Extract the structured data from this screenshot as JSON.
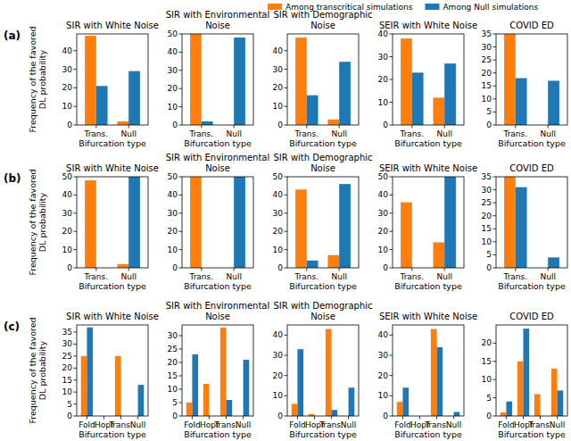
{
  "chart_data": [
    {
      "type": "bar",
      "title": "SIR with White Noise",
      "xlabel": "Bifurcation type",
      "ylabel": "Frequency of the favored DL probability",
      "annotations": [
        "(a)"
      ],
      "legend": "top",
      "categories": [
        "Trans.",
        "Null"
      ],
      "series": [
        {
          "name": "Among transcritical simulations",
          "color": "#ff7f0e",
          "values": [
            48,
            2
          ]
        },
        {
          "name": "Among Null simulations",
          "color": "#1f77b4",
          "values": [
            21,
            29
          ]
        }
      ],
      "ylim": [
        0,
        49
      ],
      "yticks": [
        0,
        10,
        20,
        30,
        40
      ]
    },
    {
      "type": "bar",
      "title": "SIR with Environmental Noise",
      "xlabel": "Bifurcation type",
      "categories": [
        "Trans.",
        "Null"
      ],
      "series": [
        {
          "name": "Among transcritical simulations",
          "color": "#ff7f0e",
          "values": [
            50,
            0
          ]
        },
        {
          "name": "Among Null simulations",
          "color": "#1f77b4",
          "values": [
            2,
            48
          ]
        }
      ],
      "ylim": [
        0,
        50
      ],
      "yticks": [
        0,
        10,
        20,
        30,
        40,
        50
      ]
    },
    {
      "type": "bar",
      "title": "SIR with Demographic Noise",
      "xlabel": "Bifurcation type",
      "categories": [
        "Trans.",
        "Null"
      ],
      "series": [
        {
          "name": "Among transcritical simulations",
          "color": "#ff7f0e",
          "values": [
            47,
            3
          ]
        },
        {
          "name": "Among Null simulations",
          "color": "#1f77b4",
          "values": [
            16,
            34
          ]
        }
      ],
      "ylim": [
        0,
        49
      ],
      "yticks": [
        0,
        10,
        20,
        30,
        40
      ]
    },
    {
      "type": "bar",
      "title": "SEIR with White Noise",
      "xlabel": "Bifurcation type",
      "categories": [
        "Trans.",
        "Null"
      ],
      "series": [
        {
          "name": "Among transcritical simulations",
          "color": "#ff7f0e",
          "values": [
            38,
            12
          ]
        },
        {
          "name": "Among Null simulations",
          "color": "#1f77b4",
          "values": [
            23,
            27
          ]
        }
      ],
      "ylim": [
        0,
        40
      ],
      "yticks": [
        0,
        10,
        20,
        30,
        40
      ]
    },
    {
      "type": "bar",
      "title": "COVID ED",
      "xlabel": "Bifurcation type",
      "categories": [
        "Trans.",
        "Null"
      ],
      "series": [
        {
          "name": "Among transcritical simulations",
          "color": "#ff7f0e",
          "values": [
            35,
            0
          ]
        },
        {
          "name": "Among Null simulations",
          "color": "#1f77b4",
          "values": [
            18,
            17
          ]
        }
      ],
      "ylim": [
        0,
        35
      ],
      "yticks": [
        0,
        5,
        10,
        15,
        20,
        25,
        30,
        35
      ]
    },
    {
      "type": "bar",
      "title": "SIR with White Noise",
      "xlabel": "Bifurcation type",
      "ylabel": "Frequency of the favored DL probability",
      "annotations": [
        "(b)"
      ],
      "categories": [
        "Trans.",
        "Null"
      ],
      "series": [
        {
          "name": "Among transcritical simulations",
          "color": "#ff7f0e",
          "values": [
            48,
            2
          ]
        },
        {
          "name": "Among Null simulations",
          "color": "#1f77b4",
          "values": [
            0,
            50
          ]
        }
      ],
      "ylim": [
        0,
        50
      ],
      "yticks": [
        0,
        10,
        20,
        30,
        40,
        50
      ]
    },
    {
      "type": "bar",
      "title": "SIR with Environmental Noise",
      "xlabel": "Bifurcation type",
      "categories": [
        "Trans.",
        "Null"
      ],
      "series": [
        {
          "name": "Among transcritical simulations",
          "color": "#ff7f0e",
          "values": [
            50,
            0
          ]
        },
        {
          "name": "Among Null simulations",
          "color": "#1f77b4",
          "values": [
            0,
            50
          ]
        }
      ],
      "ylim": [
        0,
        50
      ],
      "yticks": [
        0,
        10,
        20,
        30,
        40,
        50
      ]
    },
    {
      "type": "bar",
      "title": "SIR with Demographic Noise",
      "xlabel": "Bifurcation type",
      "categories": [
        "Trans.",
        "Null"
      ],
      "series": [
        {
          "name": "Among transcritical simulations",
          "color": "#ff7f0e",
          "values": [
            43,
            7
          ]
        },
        {
          "name": "Among Null simulations",
          "color": "#1f77b4",
          "values": [
            4,
            46
          ]
        }
      ],
      "ylim": [
        0,
        50
      ],
      "yticks": [
        0,
        10,
        20,
        30,
        40,
        50
      ]
    },
    {
      "type": "bar",
      "title": "SEIR with White Noise",
      "xlabel": "Bifurcation type",
      "categories": [
        "Trans.",
        "Null"
      ],
      "series": [
        {
          "name": "Among transcritical simulations",
          "color": "#ff7f0e",
          "values": [
            36,
            14
          ]
        },
        {
          "name": "Among Null simulations",
          "color": "#1f77b4",
          "values": [
            0,
            50
          ]
        }
      ],
      "ylim": [
        0,
        50
      ],
      "yticks": [
        0,
        10,
        20,
        30,
        40,
        50
      ]
    },
    {
      "type": "bar",
      "title": "COVID ED",
      "xlabel": "Bifurcation type",
      "categories": [
        "Trans.",
        "Null"
      ],
      "series": [
        {
          "name": "Among transcritical simulations",
          "color": "#ff7f0e",
          "values": [
            35,
            0
          ]
        },
        {
          "name": "Among Null simulations",
          "color": "#1f77b4",
          "values": [
            31,
            4
          ]
        }
      ],
      "ylim": [
        0,
        35
      ],
      "yticks": [
        0,
        5,
        10,
        15,
        20,
        25,
        30,
        35
      ]
    },
    {
      "type": "bar",
      "title": "SIR with White Noise",
      "xlabel": "Bifurcation type",
      "ylabel": "Frequency of the favored DL probability",
      "annotations": [
        "(c)"
      ],
      "categories": [
        "Fold",
        "Hopf",
        "Trans.",
        "Null"
      ],
      "series": [
        {
          "name": "Among transcritical simulations",
          "color": "#ff7f0e",
          "values": [
            25,
            0,
            25,
            0
          ]
        },
        {
          "name": "Among Null simulations",
          "color": "#1f77b4",
          "values": [
            37,
            0,
            0,
            13
          ]
        }
      ],
      "ylim": [
        0,
        38
      ],
      "yticks": [
        0,
        5,
        10,
        15,
        20,
        25,
        30,
        35
      ]
    },
    {
      "type": "bar",
      "title": "SIR with Environmental Noise",
      "xlabel": "Bifurcation type",
      "categories": [
        "Fold",
        "Hopf",
        "Trans.",
        "Null"
      ],
      "series": [
        {
          "name": "Among transcritical simulations",
          "color": "#ff7f0e",
          "values": [
            5,
            12,
            33,
            0
          ]
        },
        {
          "name": "Among Null simulations",
          "color": "#1f77b4",
          "values": [
            23,
            0,
            6,
            21
          ]
        }
      ],
      "ylim": [
        0,
        34
      ],
      "yticks": [
        0,
        5,
        10,
        15,
        20,
        25,
        30
      ]
    },
    {
      "type": "bar",
      "title": "SIR with Demographic Noise",
      "xlabel": "Bifurcation type",
      "categories": [
        "Fold",
        "Hopf",
        "Trans.",
        "Null"
      ],
      "series": [
        {
          "name": "Among transcritical simulations",
          "color": "#ff7f0e",
          "values": [
            6,
            1,
            43,
            0
          ]
        },
        {
          "name": "Among Null simulations",
          "color": "#1f77b4",
          "values": [
            33,
            0,
            3,
            14
          ]
        }
      ],
      "ylim": [
        0,
        45
      ],
      "yticks": [
        0,
        10,
        20,
        30,
        40
      ]
    },
    {
      "type": "bar",
      "title": "SEIR with White Noise",
      "xlabel": "Bifurcation type",
      "categories": [
        "Fold",
        "Hopf",
        "Trans.",
        "Null"
      ],
      "series": [
        {
          "name": "Among transcritical simulations",
          "color": "#ff7f0e",
          "values": [
            7,
            0,
            43,
            0
          ]
        },
        {
          "name": "Among Null simulations",
          "color": "#1f77b4",
          "values": [
            14,
            0,
            34,
            2
          ]
        }
      ],
      "ylim": [
        0,
        45
      ],
      "yticks": [
        0,
        10,
        20,
        30,
        40
      ]
    },
    {
      "type": "bar",
      "title": "COVID ED",
      "xlabel": "Bifurcation type",
      "categories": [
        "Fold",
        "Hopf",
        "Trans.",
        "Null"
      ],
      "series": [
        {
          "name": "Among transcritical simulations",
          "color": "#ff7f0e",
          "values": [
            1,
            15,
            6,
            13
          ]
        },
        {
          "name": "Among Null simulations",
          "color": "#1f77b4",
          "values": [
            4,
            24,
            0,
            7
          ]
        }
      ],
      "ylim": [
        0,
        25
      ],
      "yticks": [
        0,
        5,
        10,
        15,
        20
      ]
    }
  ]
}
